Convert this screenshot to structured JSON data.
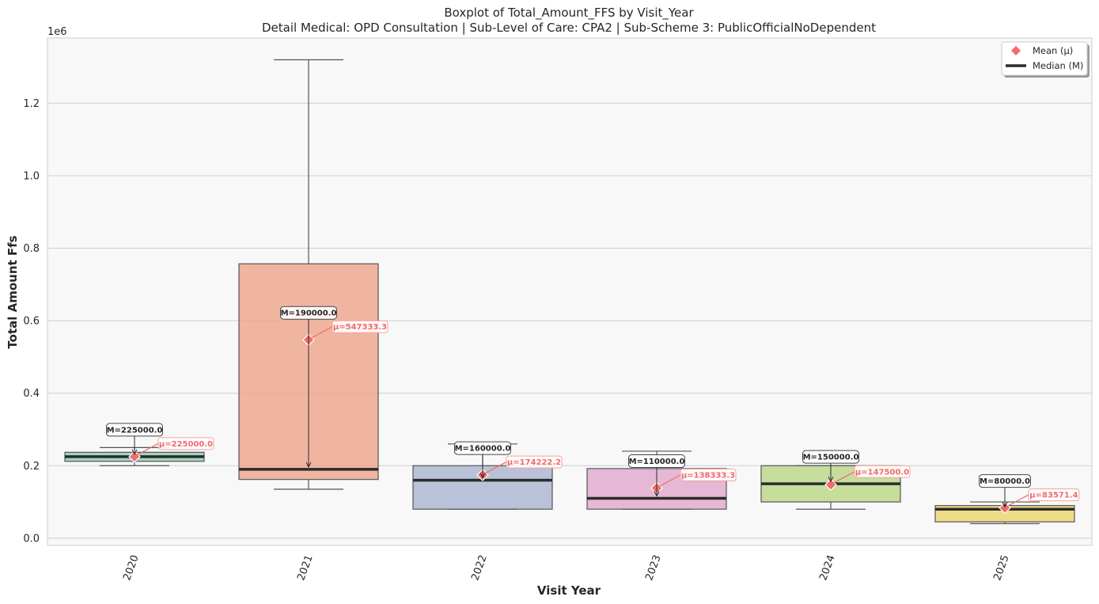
{
  "chart_data": {
    "type": "box",
    "title": "Boxplot of Total_Amount_FFS by Visit_Year",
    "subtitle": "Detail Medical: OPD Consultation | Sub-Level of Care: CPA2 | Sub-Scheme 3: PublicOfficialNoDependent",
    "xlabel": "Visit Year",
    "ylabel": "Total Amount Ffs",
    "y_offset_label": "1e6",
    "ylim": [
      -20000,
      1380000
    ],
    "yticks": [
      0.0,
      0.2,
      0.4,
      0.6,
      0.8,
      1.0,
      1.2
    ],
    "ytick_labels": [
      "0.0",
      "0.2",
      "0.4",
      "0.6",
      "0.8",
      "1.0",
      "1.2"
    ],
    "grid": "horizontal",
    "legend": {
      "placement": "top-right",
      "entries": [
        {
          "label": "Mean (μ)",
          "marker": "diamond",
          "color": "#f46b6b"
        },
        {
          "label": "Median (M)",
          "marker": "line",
          "color": "#2b2b2b"
        }
      ]
    },
    "categories": [
      "2020",
      "2021",
      "2022",
      "2023",
      "2024",
      "2025"
    ],
    "boxes": [
      {
        "category": "2020",
        "whisker_low": 200000,
        "q1": 212000,
        "median": 225000,
        "q3": 237000,
        "whisker_high": 250000,
        "mean": 225000,
        "color": "#8fc9b4",
        "median_label": "M=225000.0",
        "mean_label": "μ=225000.0"
      },
      {
        "category": "2021",
        "whisker_low": 135000,
        "q1": 162000,
        "median": 190000,
        "q3": 757000,
        "whisker_high": 1320000,
        "mean": 547333.3,
        "color": "#eda48a",
        "median_label": "M=190000.0",
        "mean_label": "μ=547333.3"
      },
      {
        "category": "2022",
        "whisker_low": 80000,
        "q1": 80000,
        "median": 160000,
        "q3": 200000,
        "whisker_high": 260000,
        "mean": 174222.2,
        "color": "#a9b4d0",
        "median_label": "M=160000.0",
        "mean_label": "μ=174222.2"
      },
      {
        "category": "2023",
        "whisker_low": 80000,
        "q1": 80000,
        "median": 110000,
        "q3": 192000,
        "whisker_high": 240000,
        "mean": 138333.3,
        "color": "#e0a8cc",
        "median_label": "M=110000.0",
        "mean_label": "μ=138333.3"
      },
      {
        "category": "2024",
        "whisker_low": 80000,
        "q1": 100000,
        "median": 150000,
        "q3": 200000,
        "whisker_high": 200000,
        "mean": 147500.0,
        "color": "#b9d685",
        "median_label": "M=150000.0",
        "mean_label": "μ=147500.0"
      },
      {
        "category": "2025",
        "whisker_low": 40000,
        "q1": 45000,
        "median": 80000,
        "q3": 90000,
        "whisker_high": 100000,
        "mean": 83571.4,
        "color": "#ecd46a",
        "median_label": "M=80000.0",
        "mean_label": "μ=83571.4"
      }
    ]
  }
}
